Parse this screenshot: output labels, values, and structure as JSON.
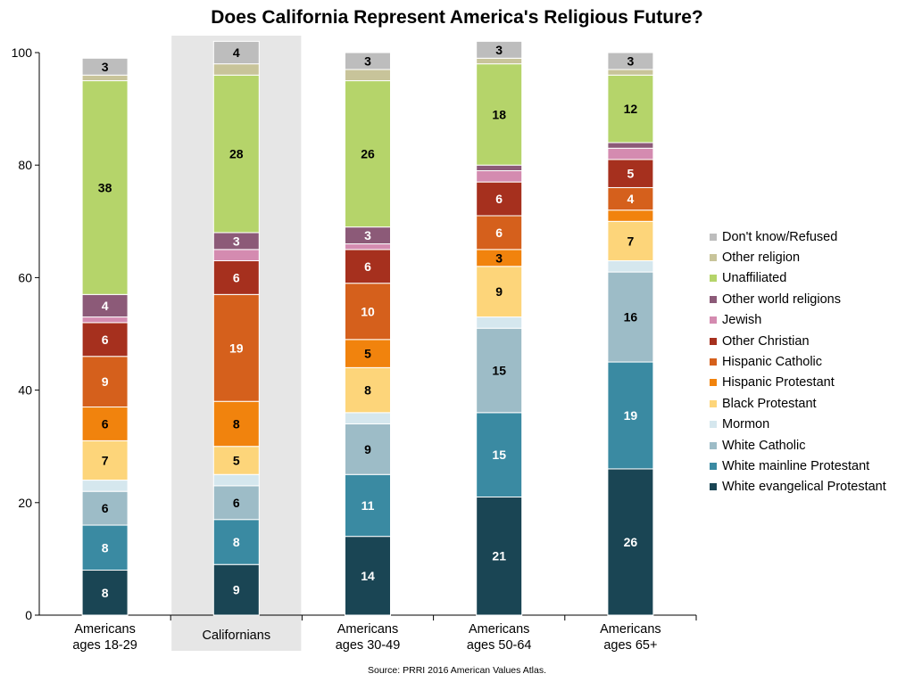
{
  "chart_data": {
    "type": "bar",
    "stacked": true,
    "title": "Does California Represent America's Religious Future?",
    "source": "Source: PRRI 2016 American Values Atlas.",
    "ylim": [
      0,
      100
    ],
    "yticks": [
      "0",
      "20",
      "40",
      "60",
      "80",
      "100"
    ],
    "categories": [
      [
        "Americans",
        "ages 18-29"
      ],
      [
        "Californians"
      ],
      [
        "Americans",
        "ages 30-49"
      ],
      [
        "Americans",
        "ages 50-64"
      ],
      [
        "Americans",
        "ages 65+"
      ]
    ],
    "highlighted_category_index": 1,
    "legend_position": "right",
    "series": [
      {
        "name": "White evangelical Protestant",
        "color": "#1a4554",
        "label_color": "#ffffff",
        "values": [
          8,
          9,
          14,
          21,
          26
        ]
      },
      {
        "name": "White mainline Protestant",
        "color": "#3a8aa2",
        "label_color": "#ffffff",
        "values": [
          8,
          8,
          11,
          15,
          19
        ]
      },
      {
        "name": "White Catholic",
        "color": "#9dbcc7",
        "label_color": "#000000",
        "values": [
          6,
          6,
          9,
          15,
          16
        ]
      },
      {
        "name": "Mormon",
        "color": "#d5e7ee",
        "label_color": "#000000",
        "values": [
          2,
          2,
          2,
          2,
          2
        ]
      },
      {
        "name": "Black Protestant",
        "color": "#fdd57a",
        "label_color": "#000000",
        "values": [
          7,
          5,
          8,
          9,
          7
        ]
      },
      {
        "name": "Hispanic Protestant",
        "color": "#f1830d",
        "label_color": "#000000",
        "values": [
          6,
          8,
          5,
          3,
          2
        ]
      },
      {
        "name": "Hispanic Catholic",
        "color": "#d5601c",
        "label_color": "#ffffff",
        "values": [
          9,
          19,
          10,
          6,
          4
        ]
      },
      {
        "name": "Other Christian",
        "color": "#a6301e",
        "label_color": "#ffffff",
        "values": [
          6,
          6,
          6,
          6,
          5
        ]
      },
      {
        "name": "Jewish",
        "color": "#d48bb0",
        "label_color": "#000000",
        "values": [
          1,
          2,
          1,
          2,
          2
        ]
      },
      {
        "name": "Other world religions",
        "color": "#8c5a78",
        "label_color": "#ffffff",
        "values": [
          4,
          3,
          3,
          1,
          1
        ]
      },
      {
        "name": "Unaffiliated",
        "color": "#b5d46a",
        "label_color": "#000000",
        "values": [
          38,
          28,
          26,
          18,
          12
        ]
      },
      {
        "name": "Other religion",
        "color": "#c8c49a",
        "label_color": "#000000",
        "values": [
          1,
          2,
          2,
          1,
          1
        ]
      },
      {
        "name": "Don't know/Refused",
        "color": "#bdbdbd",
        "label_color": "#000000",
        "values": [
          3,
          4,
          3,
          3,
          3
        ]
      }
    ],
    "data_labels": [
      [
        8,
        8,
        6,
        null,
        7,
        6,
        9,
        6,
        null,
        4,
        38,
        null,
        3
      ],
      [
        9,
        8,
        6,
        null,
        5,
        8,
        19,
        6,
        null,
        3,
        28,
        null,
        4
      ],
      [
        14,
        11,
        9,
        null,
        8,
        5,
        10,
        6,
        null,
        3,
        26,
        null,
        3
      ],
      [
        21,
        15,
        15,
        null,
        9,
        3,
        6,
        6,
        null,
        null,
        18,
        null,
        3
      ],
      [
        26,
        19,
        16,
        null,
        7,
        null,
        4,
        5,
        null,
        null,
        12,
        null,
        3
      ]
    ]
  }
}
